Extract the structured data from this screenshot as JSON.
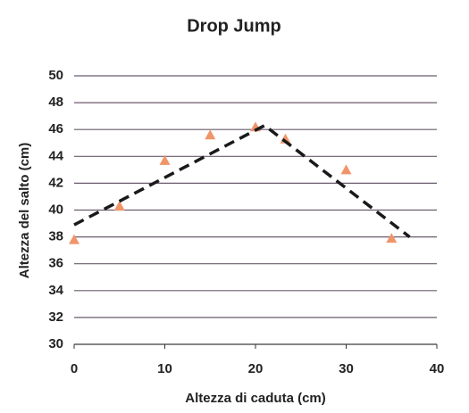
{
  "chart_data": {
    "type": "scatter",
    "title": "Drop Jump",
    "x_label": "Altezza di caduta (cm)",
    "y_label": "Altezza del salto (cm)",
    "xlim": [
      0,
      40
    ],
    "xticks": [
      0,
      10,
      20,
      30,
      40
    ],
    "ylim": [
      30,
      50
    ],
    "yticks": [
      30,
      32,
      34,
      36,
      38,
      40,
      42,
      44,
      46,
      48,
      50
    ],
    "grid": true,
    "grid_color": "#6b5a6e",
    "series": [
      {
        "kind": "markers",
        "marker": "triangle",
        "color": "#f0956a",
        "x": [
          0,
          5,
          10,
          15,
          20,
          23.3,
          30,
          35
        ],
        "values": [
          37.8,
          40.3,
          43.7,
          45.6,
          46.2,
          45.3,
          43.0,
          37.9
        ]
      },
      {
        "kind": "dashed-line",
        "color": "#1a1a1a",
        "x": [
          0,
          21,
          37
        ],
        "values": [
          38.9,
          46.3,
          38.0
        ]
      }
    ]
  }
}
